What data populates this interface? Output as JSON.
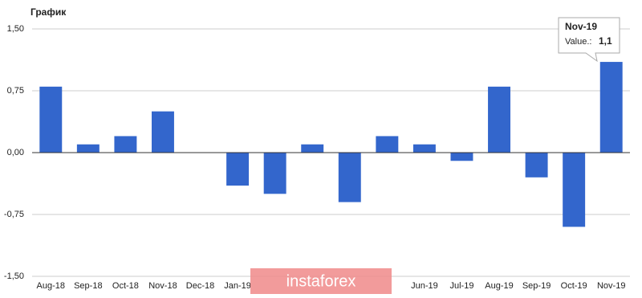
{
  "chart_data": {
    "type": "bar",
    "title": "График",
    "categories": [
      "Aug-18",
      "Sep-18",
      "Oct-18",
      "Nov-18",
      "Dec-18",
      "Jan-19",
      null,
      null,
      null,
      null,
      "Jun-19",
      "Jul-19",
      "Aug-19",
      "Sep-19",
      "Oct-19",
      "Nov-19"
    ],
    "values": [
      0.8,
      0.1,
      0.2,
      0.5,
      0,
      -0.4,
      -0.5,
      0.1,
      -0.6,
      0.2,
      0.1,
      -0.1,
      0.8,
      -0.3,
      -0.9,
      1.1
    ],
    "color": "#3366cc",
    "ylim": [
      -1.5,
      1.5
    ],
    "yticks": [
      {
        "value": -1.5,
        "label": "-1,50"
      },
      {
        "value": -0.75,
        "label": "-0,75"
      },
      {
        "value": 0,
        "label": "0,00"
      },
      {
        "value": 0.75,
        "label": "0,75"
      },
      {
        "value": 1.5,
        "label": "1,50"
      }
    ],
    "grid": true,
    "tooltip": {
      "title": "Nov-19",
      "label": "Value.:",
      "value": "1,1"
    },
    "watermark": "instaforex"
  }
}
